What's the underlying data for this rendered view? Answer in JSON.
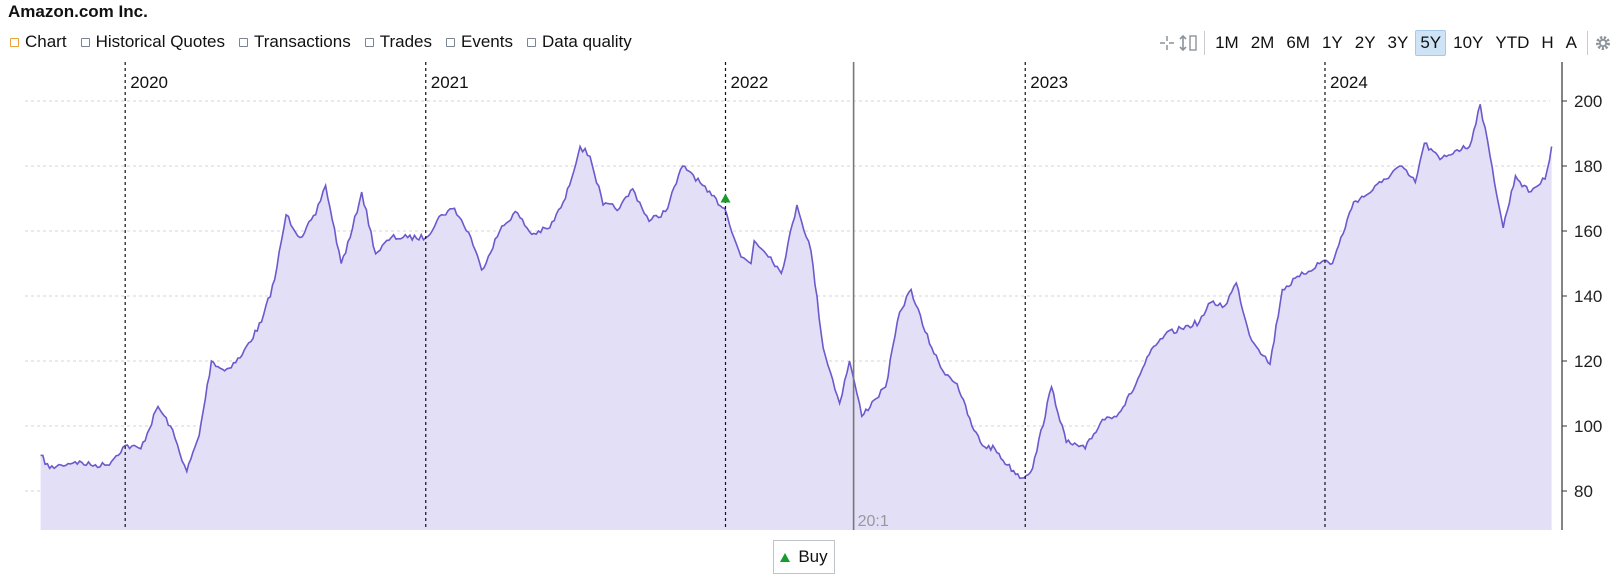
{
  "header": {
    "title": "Amazon.com Inc."
  },
  "tabs": [
    {
      "label": "Chart",
      "active": true
    },
    {
      "label": "Historical Quotes",
      "active": false
    },
    {
      "label": "Transactions",
      "active": false
    },
    {
      "label": "Trades",
      "active": false
    },
    {
      "label": "Events",
      "active": false
    },
    {
      "label": "Data quality",
      "active": false
    }
  ],
  "toolbar": {
    "icons": [
      "crosshair-icon",
      "scale-icon"
    ],
    "ranges": [
      "1M",
      "2M",
      "6M",
      "1Y",
      "2Y",
      "3Y",
      "5Y",
      "10Y",
      "YTD",
      "H",
      "A"
    ],
    "active_range": "5Y",
    "settings_icon": "gear-icon"
  },
  "legend": {
    "buy_label": "Buy",
    "buy_color": "#1a9a2a"
  },
  "chart_data": {
    "type": "area",
    "title": "",
    "xlabel": "",
    "ylabel": "",
    "x_start": "2019-09",
    "x_end": "2024-10",
    "ylim": [
      68,
      212
    ],
    "yticks": [
      80,
      100,
      120,
      140,
      160,
      180,
      200
    ],
    "line_color": "#6a5acd",
    "fill_color": "#e3dff7",
    "year_markers": [
      {
        "date": "2020-01-01",
        "label": "2020"
      },
      {
        "date": "2021-01-01",
        "label": "2021"
      },
      {
        "date": "2022-01-01",
        "label": "2022"
      },
      {
        "date": "2023-01-01",
        "label": "2023"
      },
      {
        "date": "2024-01-01",
        "label": "2024"
      }
    ],
    "split": {
      "date": "2022-06-06",
      "label": "20:1"
    },
    "buy_markers": [
      {
        "date": "2022-01-01",
        "value": 170
      }
    ],
    "series": [
      {
        "name": "",
        "points": [
          [
            "2019-09-20",
            91
          ],
          [
            "2019-10-01",
            87
          ],
          [
            "2019-10-15",
            88
          ],
          [
            "2019-11-01",
            89
          ],
          [
            "2019-11-20",
            88
          ],
          [
            "2019-12-10",
            88
          ],
          [
            "2020-01-01",
            94
          ],
          [
            "2020-01-20",
            93
          ],
          [
            "2020-02-10",
            106
          ],
          [
            "2020-02-25",
            100
          ],
          [
            "2020-03-16",
            86
          ],
          [
            "2020-03-31",
            97
          ],
          [
            "2020-04-15",
            120
          ],
          [
            "2020-05-01",
            117
          ],
          [
            "2020-05-20",
            121
          ],
          [
            "2020-06-15",
            132
          ],
          [
            "2020-07-01",
            145
          ],
          [
            "2020-07-15",
            165
          ],
          [
            "2020-08-01",
            158
          ],
          [
            "2020-08-20",
            165
          ],
          [
            "2020-09-01",
            174
          ],
          [
            "2020-09-20",
            150
          ],
          [
            "2020-10-01",
            158
          ],
          [
            "2020-10-15",
            172
          ],
          [
            "2020-11-01",
            153
          ],
          [
            "2020-11-20",
            158
          ],
          [
            "2020-12-10",
            158
          ],
          [
            "2021-01-01",
            158
          ],
          [
            "2021-01-20",
            165
          ],
          [
            "2021-02-05",
            167
          ],
          [
            "2021-02-25",
            158
          ],
          [
            "2021-03-10",
            148
          ],
          [
            "2021-04-01",
            160
          ],
          [
            "2021-04-20",
            166
          ],
          [
            "2021-05-10",
            159
          ],
          [
            "2021-06-01",
            161
          ],
          [
            "2021-06-20",
            170
          ],
          [
            "2021-07-08",
            186
          ],
          [
            "2021-07-20",
            183
          ],
          [
            "2021-08-05",
            168
          ],
          [
            "2021-08-25",
            167
          ],
          [
            "2021-09-10",
            173
          ],
          [
            "2021-09-30",
            163
          ],
          [
            "2021-10-20",
            166
          ],
          [
            "2021-11-10",
            180
          ],
          [
            "2021-11-20",
            178
          ],
          [
            "2021-12-10",
            172
          ],
          [
            "2021-12-31",
            167
          ],
          [
            "2022-01-20",
            152
          ],
          [
            "2022-02-01",
            150
          ],
          [
            "2022-02-05",
            157
          ],
          [
            "2022-02-25",
            152
          ],
          [
            "2022-03-10",
            147
          ],
          [
            "2022-03-29",
            168
          ],
          [
            "2022-04-15",
            154
          ],
          [
            "2022-04-30",
            124
          ],
          [
            "2022-05-20",
            107
          ],
          [
            "2022-06-01",
            120
          ],
          [
            "2022-06-10",
            110
          ],
          [
            "2022-06-16",
            103
          ],
          [
            "2022-07-01",
            108
          ],
          [
            "2022-07-15",
            112
          ],
          [
            "2022-08-01",
            135
          ],
          [
            "2022-08-15",
            142
          ],
          [
            "2022-09-01",
            129
          ],
          [
            "2022-09-20",
            118
          ],
          [
            "2022-10-10",
            113
          ],
          [
            "2022-10-28",
            100
          ],
          [
            "2022-11-10",
            94
          ],
          [
            "2022-11-25",
            93
          ],
          [
            "2022-12-10",
            88
          ],
          [
            "2022-12-28",
            84
          ],
          [
            "2023-01-10",
            87
          ],
          [
            "2023-02-02",
            112
          ],
          [
            "2023-02-20",
            95
          ],
          [
            "2023-03-15",
            93
          ],
          [
            "2023-04-05",
            102
          ],
          [
            "2023-04-25",
            104
          ],
          [
            "2023-05-10",
            110
          ],
          [
            "2023-06-01",
            122
          ],
          [
            "2023-06-20",
            128
          ],
          [
            "2023-07-10",
            130
          ],
          [
            "2023-08-01",
            132
          ],
          [
            "2023-08-15",
            138
          ],
          [
            "2023-09-01",
            137
          ],
          [
            "2023-09-15",
            144
          ],
          [
            "2023-10-01",
            128
          ],
          [
            "2023-10-26",
            119
          ],
          [
            "2023-11-10",
            142
          ],
          [
            "2023-12-01",
            146
          ],
          [
            "2023-12-31",
            151
          ],
          [
            "2024-01-10",
            150
          ],
          [
            "2024-02-05",
            169
          ],
          [
            "2024-02-20",
            171
          ],
          [
            "2024-03-10",
            175
          ],
          [
            "2024-04-01",
            180
          ],
          [
            "2024-04-20",
            175
          ],
          [
            "2024-05-01",
            187
          ],
          [
            "2024-05-20",
            182
          ],
          [
            "2024-06-10",
            185
          ],
          [
            "2024-06-25",
            186
          ],
          [
            "2024-07-08",
            199
          ],
          [
            "2024-07-20",
            183
          ],
          [
            "2024-08-05",
            161
          ],
          [
            "2024-08-20",
            177
          ],
          [
            "2024-09-05",
            172
          ],
          [
            "2024-09-25",
            176
          ],
          [
            "2024-10-03",
            186
          ]
        ]
      }
    ]
  }
}
